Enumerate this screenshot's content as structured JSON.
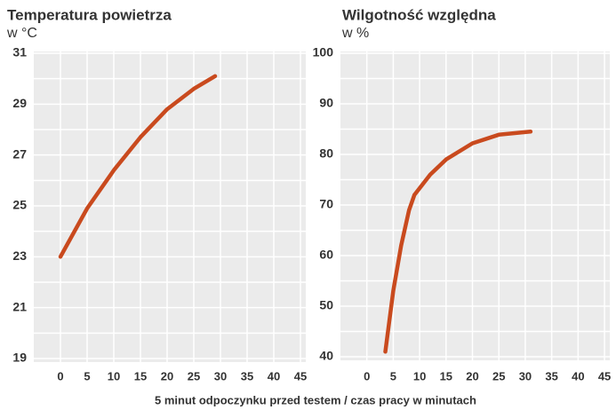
{
  "chart_data": [
    {
      "type": "line",
      "title": "Temperatura powietrza",
      "subtitle": "w °C",
      "x": [
        0,
        5,
        10,
        15,
        20,
        25,
        29
      ],
      "series": [
        {
          "color": "#c94a1e",
          "values": [
            23,
            24.9,
            26.4,
            27.7,
            28.8,
            29.6,
            30.1
          ]
        }
      ],
      "xlim": [
        -5,
        46
      ],
      "xticks": [
        0,
        5,
        10,
        15,
        20,
        25,
        30,
        35,
        40,
        45
      ],
      "ylim": [
        19,
        31
      ],
      "yticks": [
        19,
        21,
        23,
        25,
        27,
        29,
        31
      ],
      "minor_yticks": [
        20,
        22,
        24,
        26,
        28,
        30
      ],
      "grid": true
    },
    {
      "type": "line",
      "title": "Wilgotność względna",
      "subtitle": "w %",
      "x": [
        3.5,
        5,
        6.5,
        8,
        9,
        12,
        15,
        20,
        25,
        31
      ],
      "series": [
        {
          "color": "#c94a1e",
          "values": [
            41,
            53,
            62,
            69,
            72,
            76,
            79,
            82.2,
            83.9,
            84.5
          ]
        }
      ],
      "xlim": [
        -5,
        46
      ],
      "xticks": [
        0,
        5,
        10,
        15,
        20,
        25,
        30,
        35,
        40,
        45
      ],
      "ylim": [
        40,
        100
      ],
      "yticks": [
        40,
        50,
        60,
        70,
        80,
        90,
        100
      ],
      "minor_yticks": [
        45,
        55,
        65,
        75,
        85,
        95
      ],
      "grid": true
    }
  ],
  "caption": "5 minut odpoczynku przed testem / czas pracy w minutach"
}
